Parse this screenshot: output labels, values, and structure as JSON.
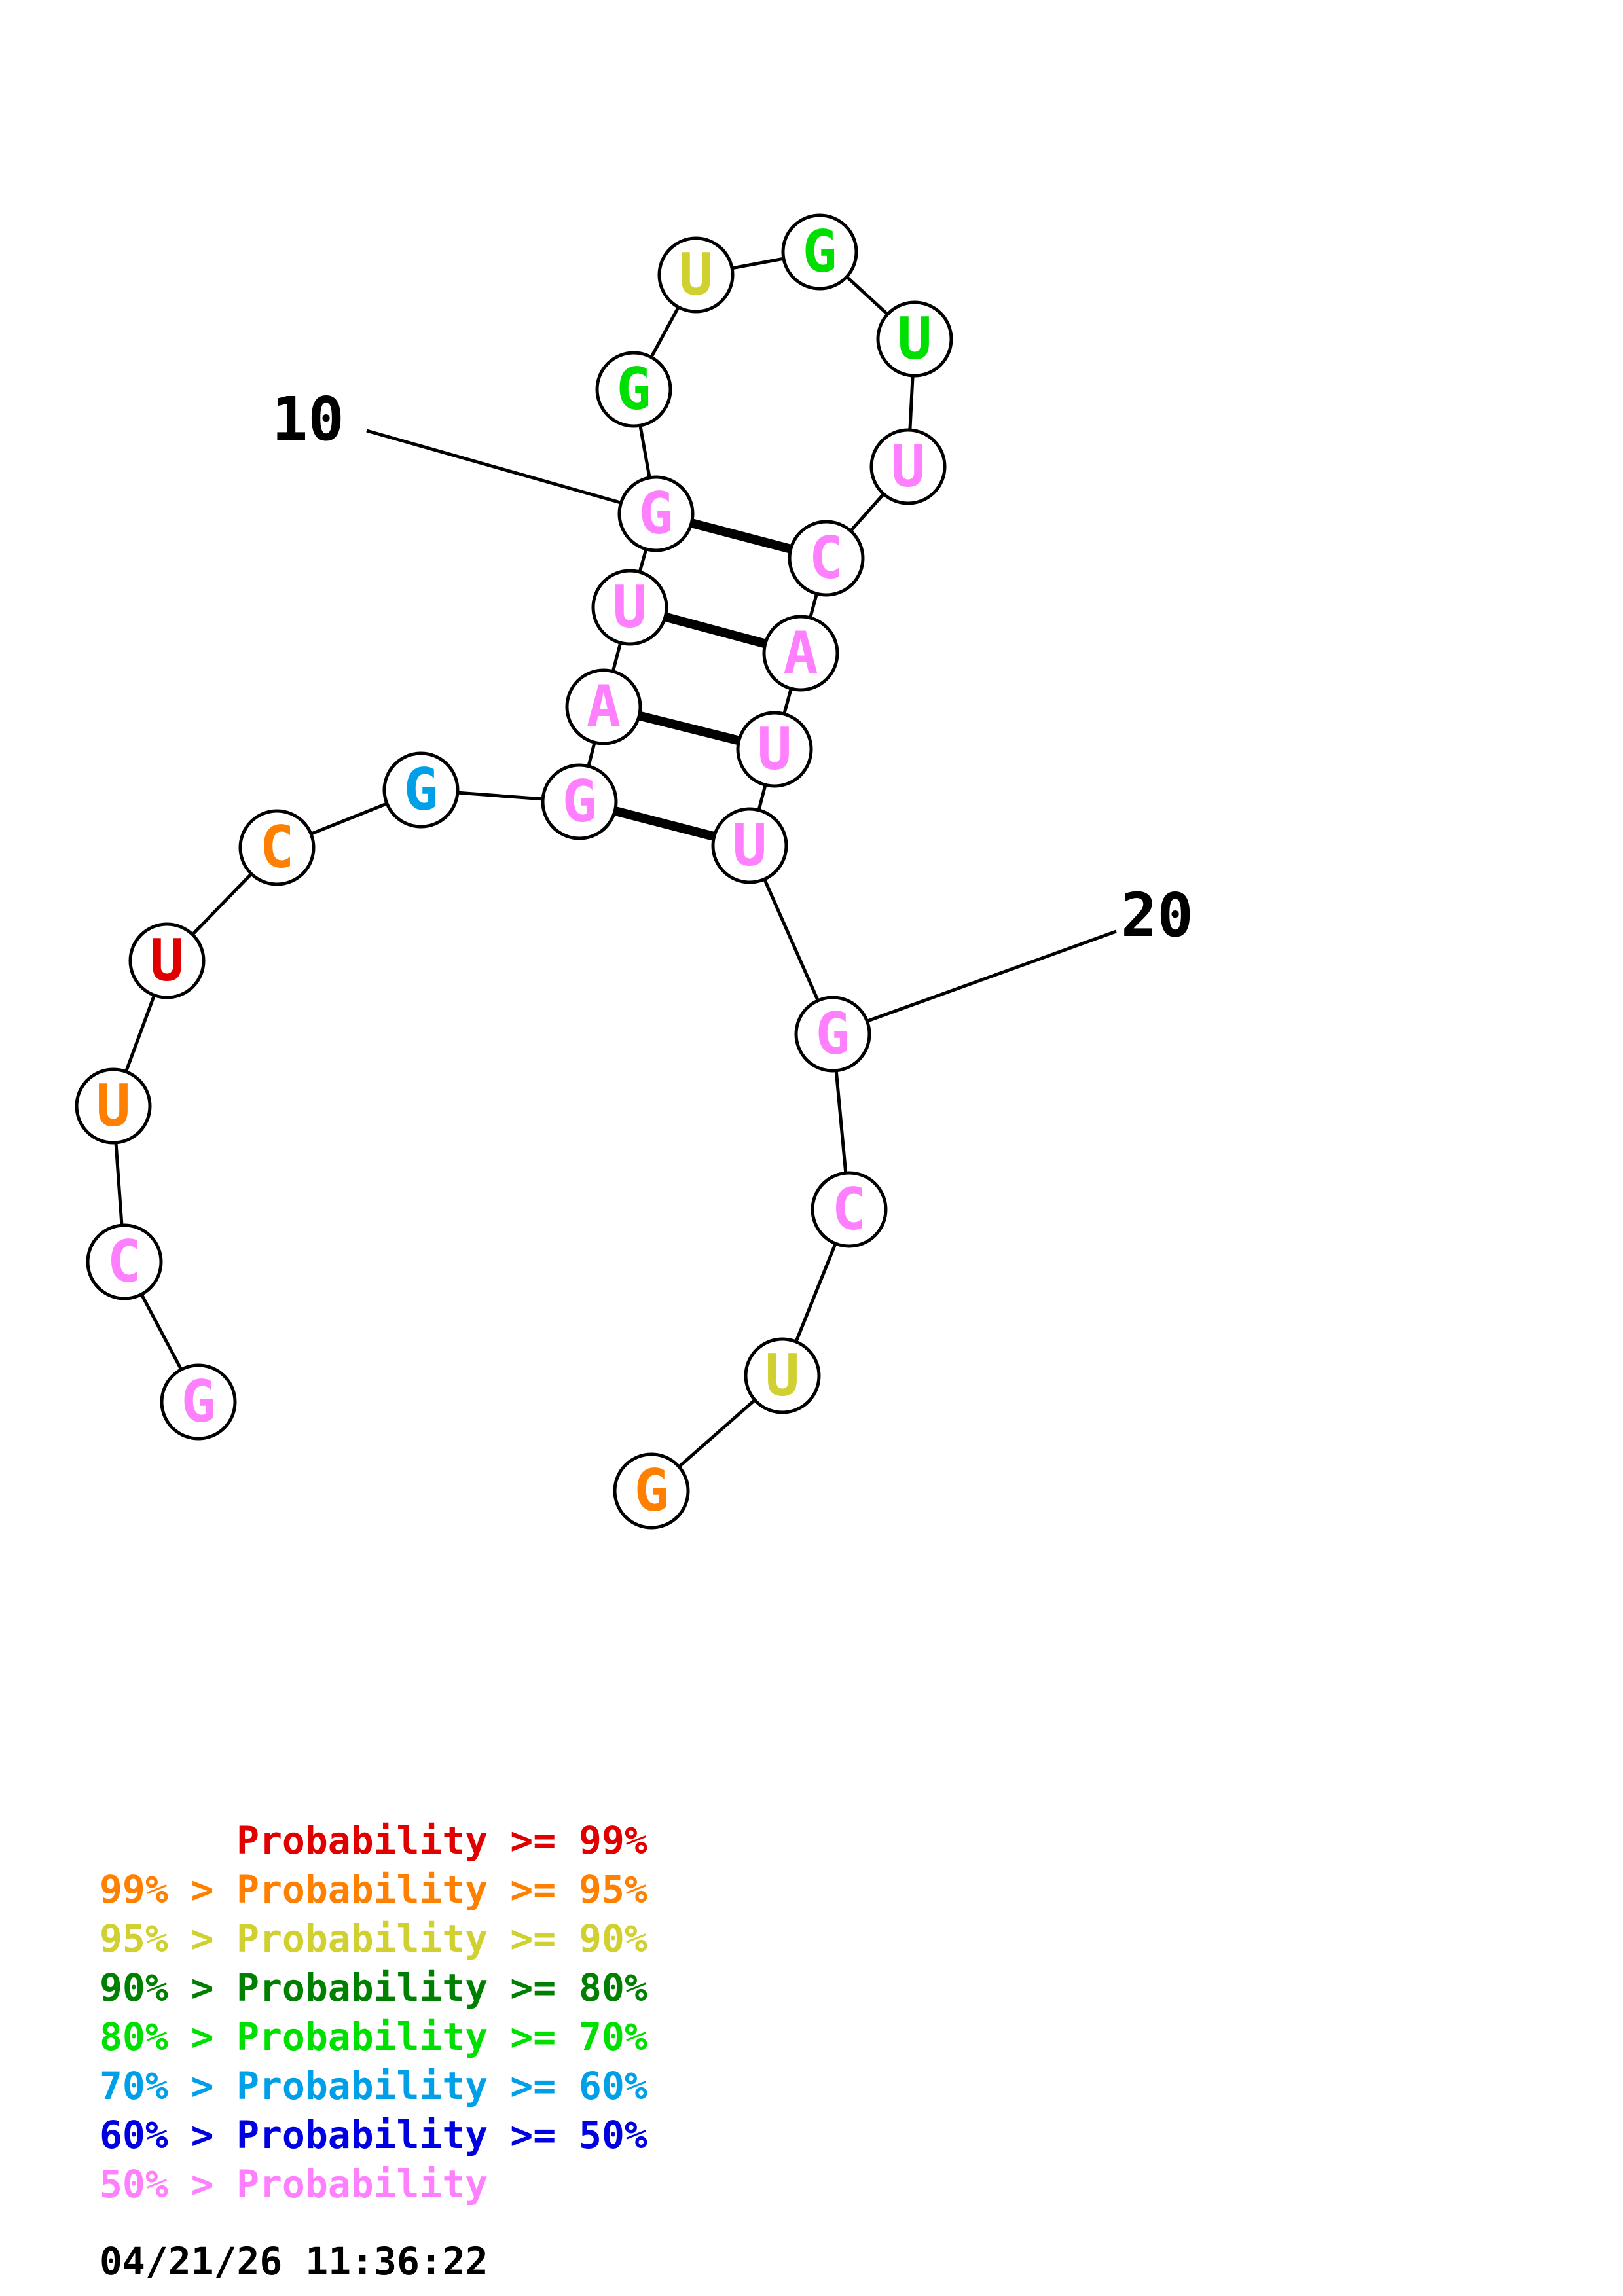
{
  "sequence": [
    {
      "base": "G",
      "color": "#ff80ff"
    },
    {
      "base": "C",
      "color": "#ff80ff"
    },
    {
      "base": "U",
      "color": "#ff8000"
    },
    {
      "base": "U",
      "color": "#e00000"
    },
    {
      "base": "C",
      "color": "#ff8000"
    },
    {
      "base": "G",
      "color": "#00a0e8"
    },
    {
      "base": "G",
      "color": "#ff80ff"
    },
    {
      "base": "A",
      "color": "#ff80ff"
    },
    {
      "base": "U",
      "color": "#ff80ff"
    },
    {
      "base": "G",
      "color": "#ff80ff"
    },
    {
      "base": "G",
      "color": "#00e000"
    },
    {
      "base": "U",
      "color": "#d0d030"
    },
    {
      "base": "G",
      "color": "#00e000"
    },
    {
      "base": "U",
      "color": "#00e000"
    },
    {
      "base": "U",
      "color": "#ff80ff"
    },
    {
      "base": "C",
      "color": "#ff80ff"
    },
    {
      "base": "A",
      "color": "#ff80ff"
    },
    {
      "base": "U",
      "color": "#ff80ff"
    },
    {
      "base": "U",
      "color": "#ff80ff"
    },
    {
      "base": "G",
      "color": "#ff80ff"
    },
    {
      "base": "C",
      "color": "#ff80ff"
    },
    {
      "base": "U",
      "color": "#d0d030"
    },
    {
      "base": "G",
      "color": "#ff8000"
    }
  ],
  "base_pairs": [
    [
      7,
      19
    ],
    [
      8,
      18
    ],
    [
      9,
      17
    ],
    [
      10,
      16
    ]
  ],
  "position_labels": [
    {
      "text": "10",
      "position": 10
    },
    {
      "text": "20",
      "position": 20
    }
  ],
  "legend": [
    {
      "prefix": "",
      "label": "Probability",
      "suffix": ">= 99%",
      "color": "#e00000"
    },
    {
      "prefix": "99% >",
      "label": "Probability",
      "suffix": ">= 95%",
      "color": "#ff8000"
    },
    {
      "prefix": "95% >",
      "label": "Probability",
      "suffix": ">= 90%",
      "color": "#d0d030"
    },
    {
      "prefix": "90% >",
      "label": "Probability",
      "suffix": ">= 80%",
      "color": "#008000"
    },
    {
      "prefix": "80% >",
      "label": "Probability",
      "suffix": ">= 70%",
      "color": "#00e000"
    },
    {
      "prefix": "70% >",
      "label": "Probability",
      "suffix": ">= 60%",
      "color": "#00a0e8"
    },
    {
      "prefix": "60% >",
      "label": "Probability",
      "suffix": ">= 50%",
      "color": "#0000e0"
    },
    {
      "prefix": "50% >",
      "label": "Probability",
      "suffix": "",
      "color": "#ff80ff"
    }
  ],
  "timestamp": "04/21/26 11:36:22"
}
